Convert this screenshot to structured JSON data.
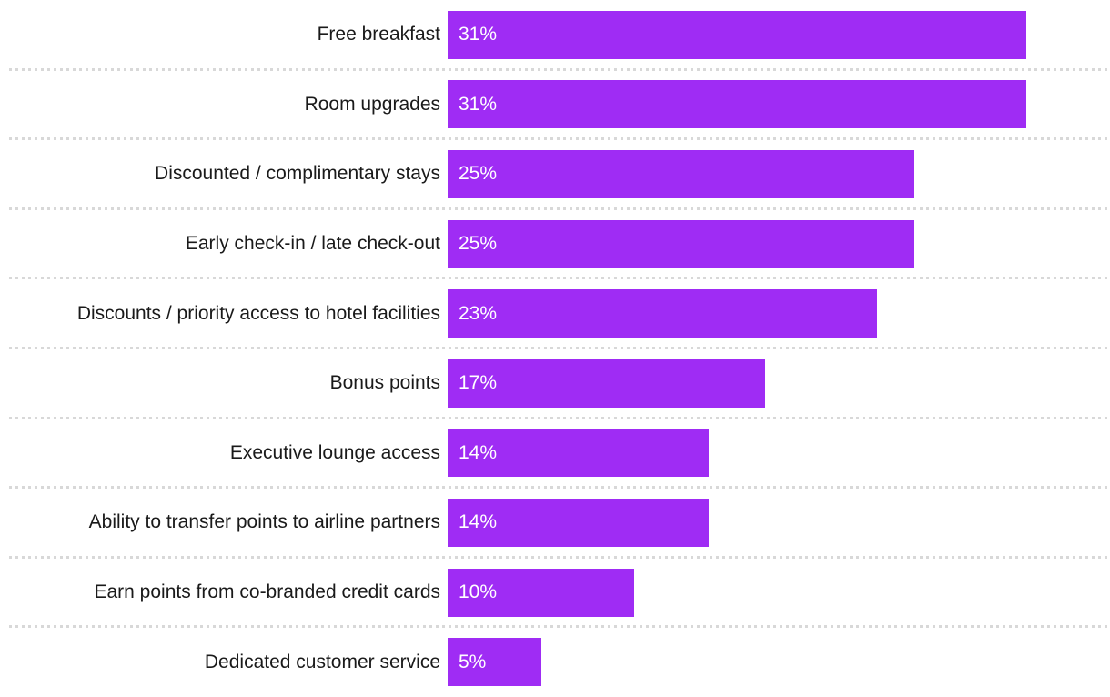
{
  "chart_data": {
    "type": "bar",
    "orientation": "horizontal",
    "title": "",
    "xlabel": "",
    "ylabel": "",
    "categories": [
      "Free breakfast",
      "Room upgrades",
      "Discounted / complimentary stays",
      "Early check-in / late check-out",
      "Discounts / priority access to hotel facilities",
      "Bonus points",
      "Executive lounge access",
      "Ability to transfer points to airline partners",
      "Earn points from co-branded credit cards",
      "Dedicated customer service"
    ],
    "values": [
      31,
      31,
      25,
      25,
      23,
      17,
      14,
      14,
      10,
      5
    ],
    "value_labels": [
      "31%",
      "31%",
      "25%",
      "25%",
      "23%",
      "17%",
      "14%",
      "14%",
      "10%",
      "5%"
    ],
    "value_suffix": "%",
    "xlim": [
      0,
      35.5
    ],
    "grid": "dotted horizontal row separators, no axes shown",
    "legend": "none",
    "colors": {
      "bar": "#9f2cf4",
      "value_label": "#ffffff",
      "category_label": "#1a1a1a",
      "separator": "#d8d8d8",
      "background": "#ffffff"
    }
  }
}
